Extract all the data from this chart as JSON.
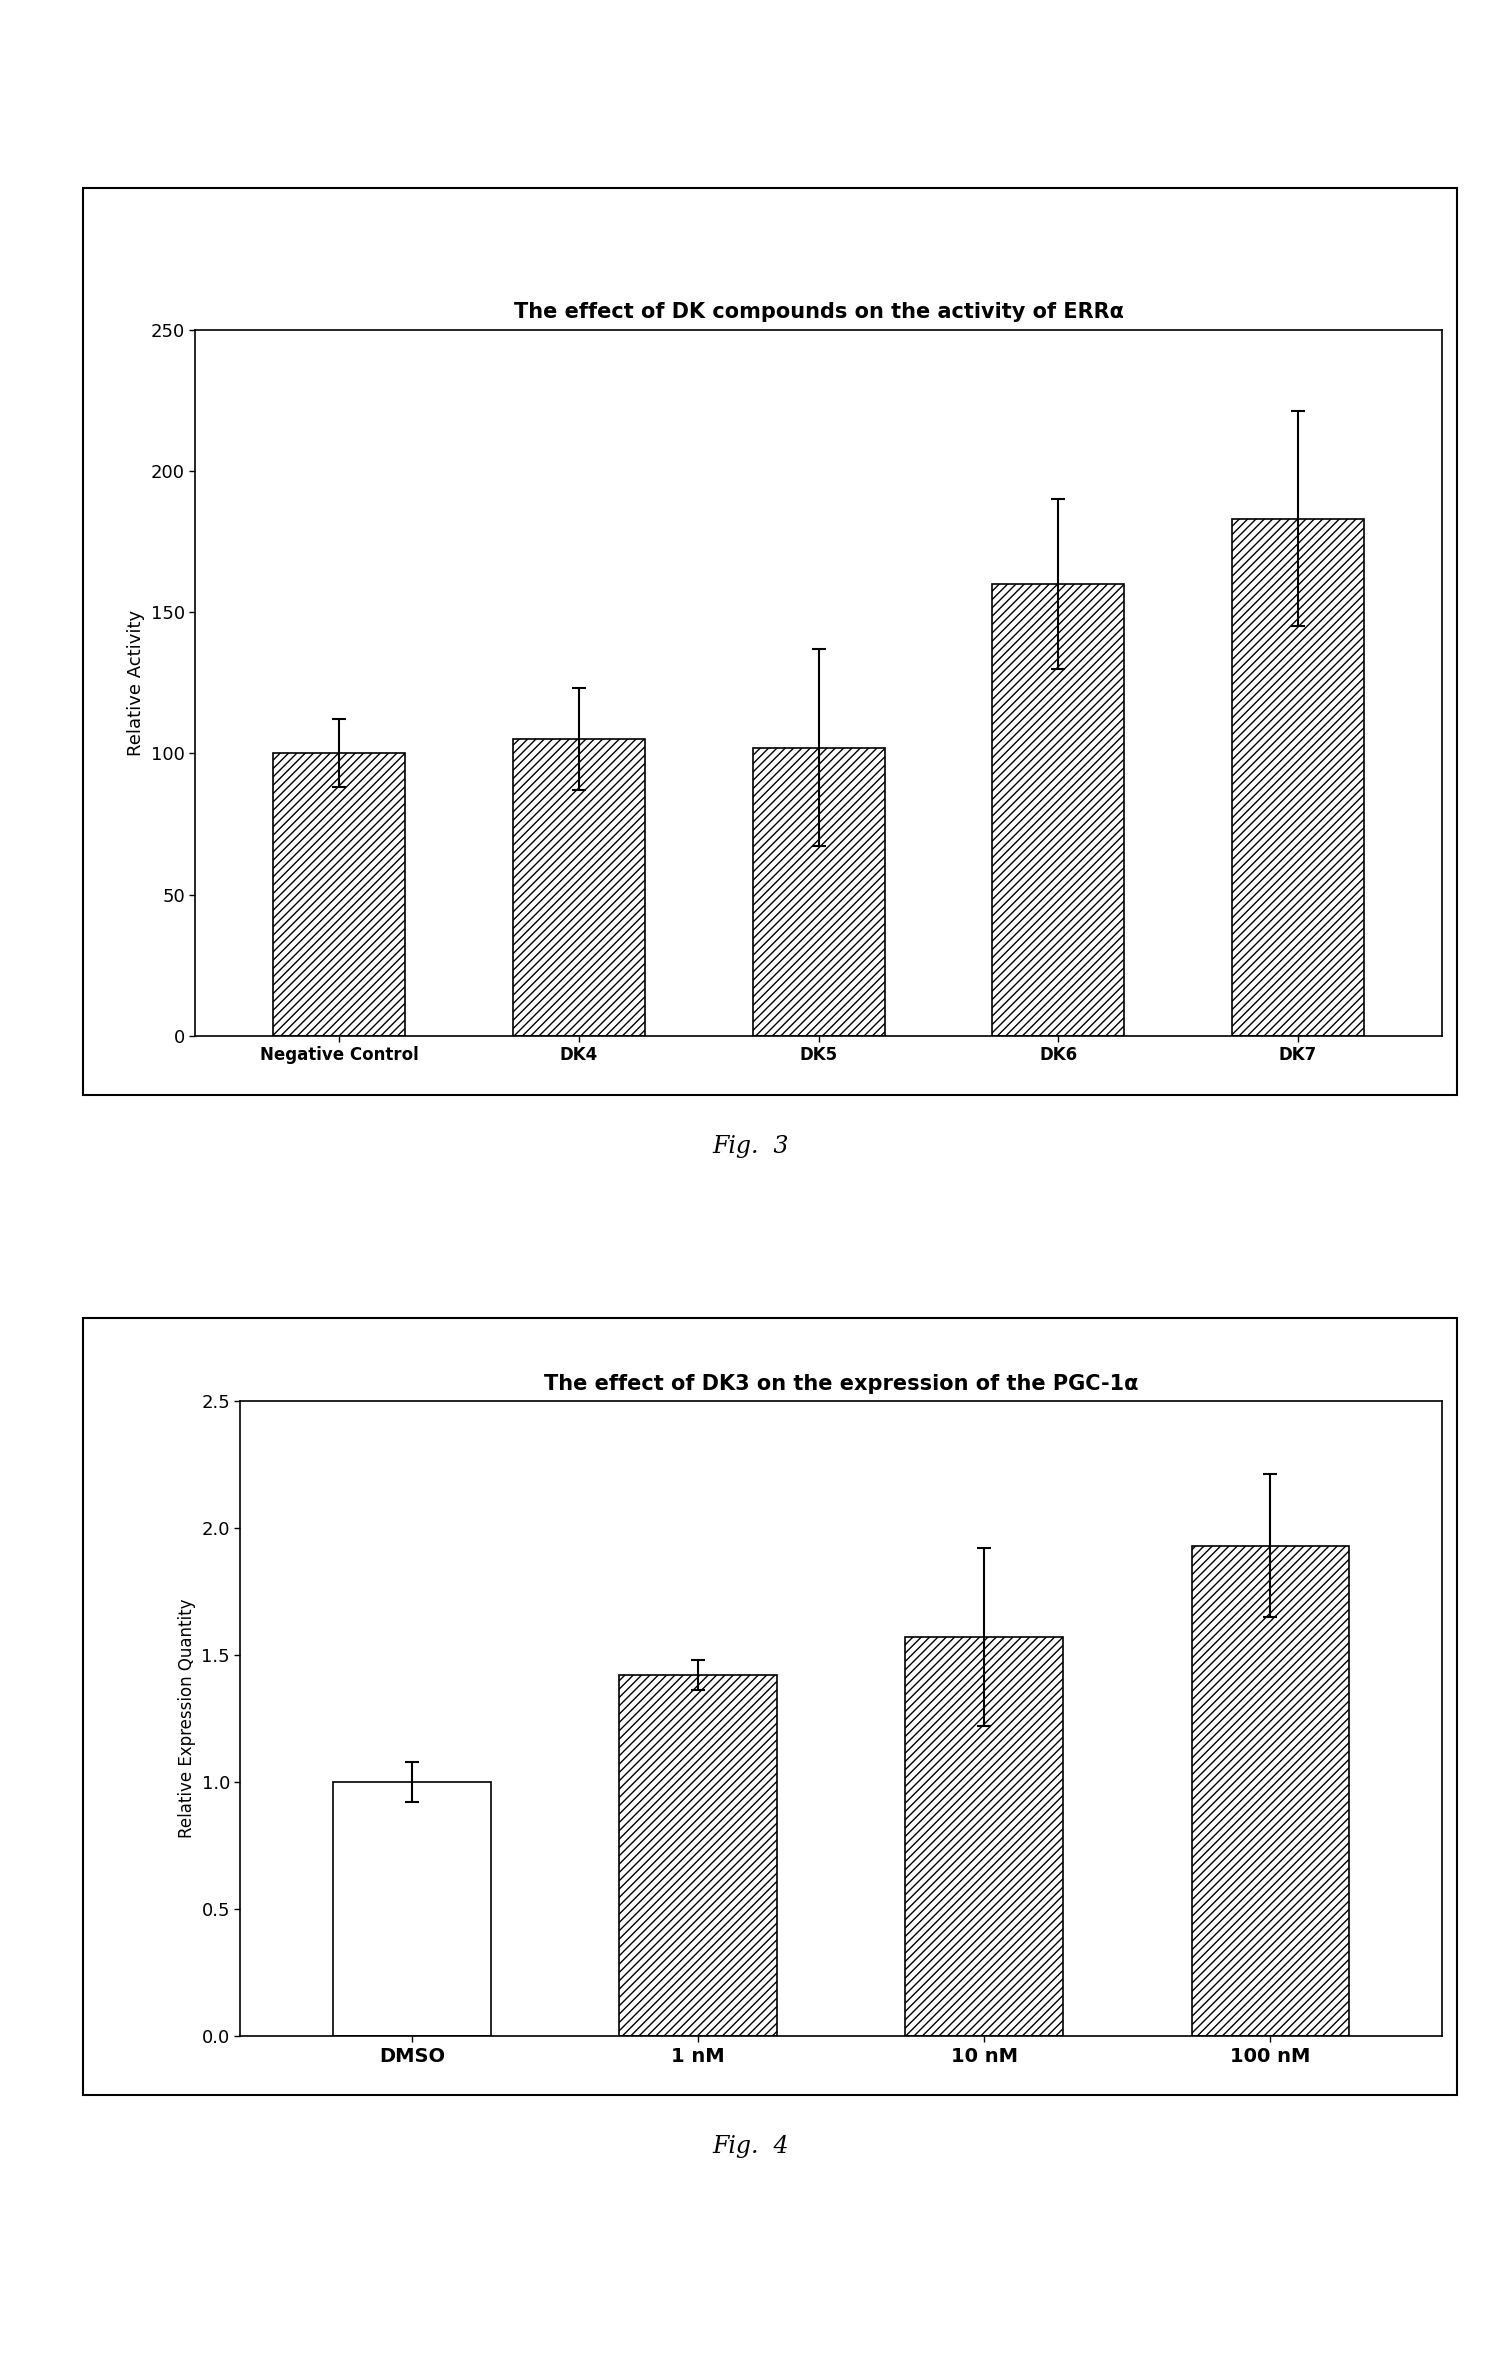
{
  "fig1": {
    "title": "The effect of DK compounds on the activity of ERRα",
    "ylabel": "Relative Activity",
    "categories": [
      "Negative Control",
      "DK4",
      "DK5",
      "DK6",
      "DK7"
    ],
    "values": [
      100,
      105,
      102,
      160,
      183
    ],
    "errors": [
      12,
      18,
      35,
      30,
      38
    ],
    "ylim": [
      0,
      250
    ],
    "yticks": [
      0,
      50,
      100,
      150,
      200,
      250
    ],
    "bar_color": "white",
    "hatch": "////",
    "figcaption": "Fig.  3"
  },
  "fig2": {
    "title": "The effect of DK3 on the expression of the PGC-1α",
    "ylabel": "Relative Expression Quantity",
    "categories": [
      "DMSO",
      "1 nM",
      "10 nM",
      "100 nM"
    ],
    "values": [
      1.0,
      1.42,
      1.57,
      1.93
    ],
    "errors": [
      0.08,
      0.06,
      0.35,
      0.28
    ],
    "ylim": [
      0,
      2.5
    ],
    "yticks": [
      0,
      0.5,
      1.0,
      1.5,
      2.0,
      2.5
    ],
    "bar_colors": [
      "white",
      "white",
      "white",
      "white"
    ],
    "hatches": [
      "",
      "////",
      "////",
      "////"
    ],
    "figcaption": "Fig.  4"
  },
  "background_color": "#ffffff",
  "plot_bg": "#ffffff",
  "font_size_title": 15,
  "font_size_ticks": 13,
  "font_size_ylabel1": 13,
  "font_size_ylabel2": 12,
  "font_size_caption": 17,
  "font_size_xticks1": 12,
  "font_size_xticks2": 14
}
